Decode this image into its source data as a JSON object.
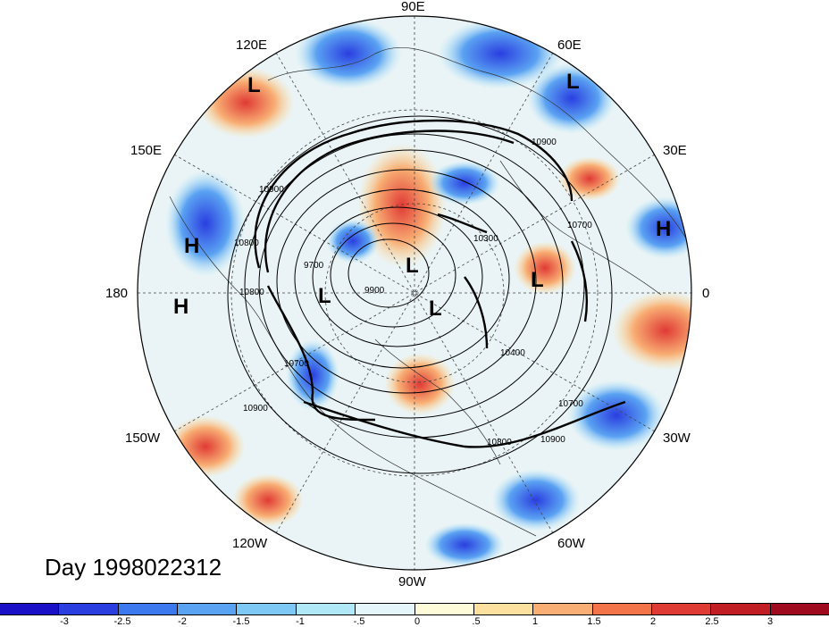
{
  "title": "Day 1998022312",
  "longitude_labels": [
    "90E",
    "60E",
    "30E",
    "0",
    "30W",
    "60W",
    "90W",
    "120W",
    "150W",
    "180",
    "150E",
    "120E"
  ],
  "pressure_centers": [
    "L",
    "L",
    "H",
    "H",
    "H",
    "L",
    "L",
    "L",
    "L"
  ],
  "contour_labels": [
    "10900",
    "10900",
    "10800",
    "10800",
    "9700",
    "9900",
    "10300",
    "10700",
    "10700",
    "10400",
    "10700",
    "10900",
    "10800",
    "10900"
  ],
  "colorbar": {
    "ticks": [
      "-3",
      "-2.5",
      "-2",
      "-1.5",
      "-1",
      "-.5",
      "0",
      ".5",
      "1",
      "1.5",
      "2",
      "2.5",
      "3"
    ],
    "colors": [
      "#1a10c8",
      "#2a3ee0",
      "#3c78ee",
      "#5aa2f2",
      "#7ec8f6",
      "#b0e8f8",
      "#e4f6fa",
      "#fdfbd8",
      "#fce0a0",
      "#f8ae74",
      "#f27448",
      "#e03a34",
      "#c01e24",
      "#a00a1e"
    ]
  }
}
